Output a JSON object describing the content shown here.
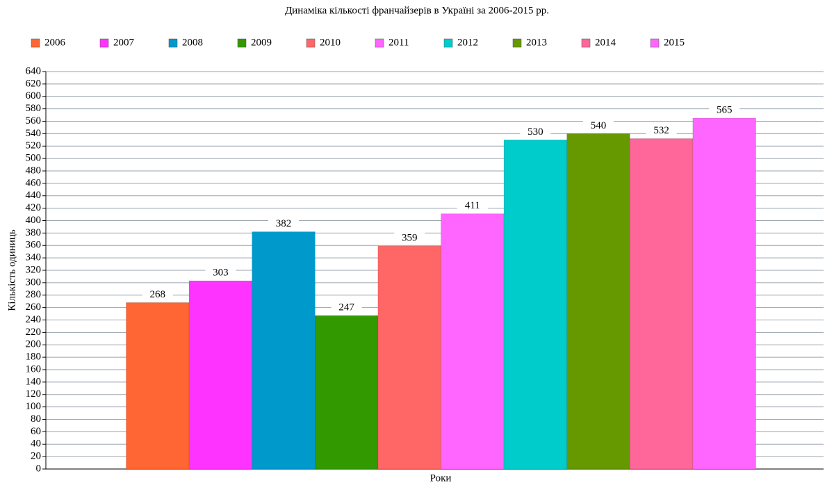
{
  "chart_data": {
    "type": "bar",
    "title": "Динаміка кількості франчайзерів в Україні за 2006-2015 рр.",
    "x_label": "Роки",
    "y_label": "Кількість одиниць",
    "categories": [
      null
    ],
    "series": [
      {
        "name": "2006",
        "color": "#ff6633",
        "values": [
          268
        ]
      },
      {
        "name": "2007",
        "color": "#ff33ff",
        "values": [
          303
        ]
      },
      {
        "name": "2008",
        "color": "#0099cc",
        "values": [
          382
        ]
      },
      {
        "name": "2009",
        "color": "#339900",
        "values": [
          247
        ]
      },
      {
        "name": "2010",
        "color": "#ff6666",
        "values": [
          359
        ]
      },
      {
        "name": "2011",
        "color": "#ff66ff",
        "values": [
          411
        ]
      },
      {
        "name": "2012",
        "color": "#00cccc",
        "values": [
          530
        ]
      },
      {
        "name": "2013",
        "color": "#669900",
        "values": [
          540
        ]
      },
      {
        "name": "2014",
        "color": "#ff6699",
        "values": [
          532
        ]
      },
      {
        "name": "2015",
        "color": "#ff66ff",
        "values": [
          565
        ]
      }
    ],
    "ylim": [
      0,
      640
    ],
    "yticks": [
      0,
      20,
      40,
      60,
      80,
      100,
      120,
      140,
      160,
      180,
      200,
      220,
      240,
      260,
      280,
      300,
      320,
      340,
      360,
      380,
      400,
      420,
      440,
      460,
      480,
      500,
      520,
      540,
      560,
      580,
      600,
      620,
      640
    ],
    "grid": true,
    "legend": "top"
  }
}
